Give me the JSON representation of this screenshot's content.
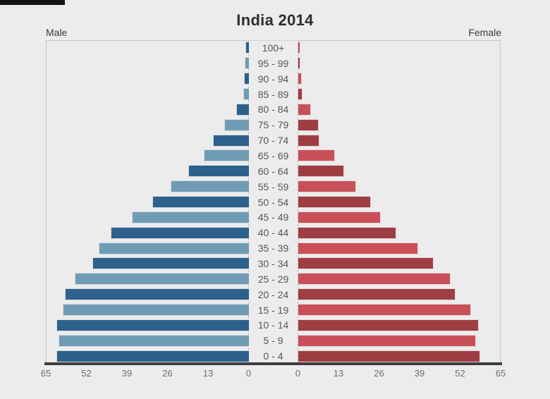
{
  "title": "India 2014",
  "left_header": "Male",
  "right_header": "Female",
  "colors": {
    "background": "#ececec",
    "male_dark": "#2d608a",
    "male_light": "#6f9cb4",
    "female_dark": "#9e3e42",
    "female_light": "#c95058",
    "baseline": "#3c3c41",
    "frame_border": "#c6c6c6",
    "tick_text": "#6e6e6e",
    "age_text": "#565656",
    "title_text": "#2e2e2e"
  },
  "chart_data": {
    "type": "bar",
    "subtype": "population-pyramid",
    "title": "India 2014",
    "axis_max": 65,
    "unit": "millions (implied)",
    "x_ticks_male": [
      65,
      52,
      39,
      26,
      13,
      0
    ],
    "x_ticks_female": [
      0,
      13,
      26,
      39,
      52,
      65
    ],
    "age_groups": [
      "100+",
      "95 - 99",
      "90 - 94",
      "85 - 89",
      "80 - 84",
      "75 - 79",
      "70 - 74",
      "65 - 69",
      "60 - 64",
      "55 - 59",
      "50 - 54",
      "45 - 49",
      "40 - 44",
      "35 - 39",
      "30 - 34",
      "25 - 29",
      "20 - 24",
      "15 - 19",
      "10 - 14",
      "5 - 9",
      "0 - 4"
    ],
    "series": [
      {
        "name": "Male",
        "values": [
          1.1,
          1.2,
          1.4,
          1.8,
          4.0,
          7.7,
          11.4,
          14.4,
          19.3,
          24.9,
          30.8,
          37.5,
          44.3,
          48.1,
          50.0,
          55.8,
          58.8,
          59.6,
          61.7,
          60.9,
          61.6
        ],
        "shades": [
          "dark",
          "light",
          "dark",
          "light",
          "dark",
          "light",
          "dark",
          "light",
          "dark",
          "light",
          "dark",
          "light",
          "dark",
          "light",
          "dark",
          "light",
          "dark",
          "light",
          "dark",
          "light",
          "dark"
        ]
      },
      {
        "name": "Female",
        "values": [
          0.5,
          0.9,
          1.2,
          1.5,
          4.2,
          6.6,
          6.9,
          11.8,
          14.8,
          18.6,
          23.5,
          26.5,
          31.5,
          38.5,
          43.5,
          49.0,
          50.5,
          55.4,
          57.9,
          57.1,
          58.4
        ],
        "shades": [
          "light",
          "dark",
          "light",
          "dark",
          "light",
          "dark",
          "dark",
          "light",
          "dark",
          "light",
          "dark",
          "light",
          "dark",
          "light",
          "dark",
          "light",
          "dark",
          "light",
          "dark",
          "light",
          "dark"
        ]
      }
    ],
    "legend": "none",
    "grid": "off"
  }
}
